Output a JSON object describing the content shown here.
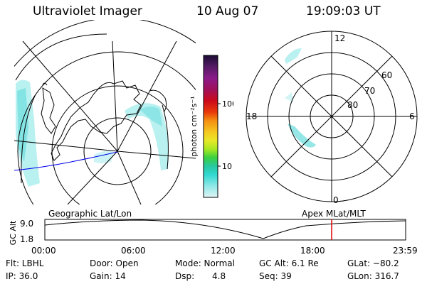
{
  "header": {
    "title": "Ultraviolet Imager",
    "date": "10 Aug 07",
    "time": "19:09:03 UT"
  },
  "colorbar": {
    "label": "photon cm⁻²s⁻¹",
    "ticks": [
      "100",
      "10"
    ],
    "colors": [
      "#1a0d33",
      "#551a66",
      "#8a1a8a",
      "#a0105a",
      "#cc0a1a",
      "#e83a0a",
      "#f59010",
      "#f5c820",
      "#e8e828",
      "#a8e820",
      "#3ad040",
      "#28c8a0",
      "#30d8d0",
      "#90e8e8",
      "#e0f4f4"
    ]
  },
  "geo_panel": {
    "label": "Geographic Lat/Lon"
  },
  "mag_panel": {
    "label": "Apex MLat/MLT",
    "mlt_labels": {
      "top": "12",
      "bottom": "0",
      "left": "18",
      "right": "6"
    },
    "lat_labels": [
      "60",
      "70",
      "80"
    ]
  },
  "altitude_plot": {
    "ylabel": "GC Alt",
    "yticks": [
      "9.0",
      "1.8"
    ],
    "xticks": [
      "00:00",
      "06:00",
      "12:00",
      "18:00",
      "23:59"
    ],
    "marker_color": "#dd0000"
  },
  "info": {
    "col1": [
      "Flt: LBHL",
      "IP: 36.0"
    ],
    "col2": [
      "Door: Open",
      "Gain: 14"
    ],
    "col3a": [
      "Mode: Normal",
      "Dsp:"
    ],
    "col3b": [
      "",
      "4.8"
    ],
    "col4": [
      "GC Alt: 6.1 Re",
      "Seq: 39"
    ],
    "col5": [
      "GLat: −80.2",
      "GLon: 316.7"
    ]
  }
}
